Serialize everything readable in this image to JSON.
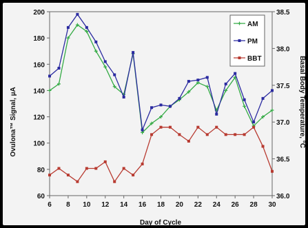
{
  "chart_data": {
    "type": "line",
    "xlabel": "Day of Cycle",
    "ylabel_left": "Ovulona™ Signal, µA",
    "ylabel_right": "Basal Body Temperature, °C",
    "xlim": [
      6,
      30
    ],
    "ylim_left": [
      60,
      200
    ],
    "ylim_right": [
      36.0,
      38.5
    ],
    "x_ticks": [
      "6",
      "8",
      "10",
      "12",
      "14",
      "16",
      "18",
      "20",
      "22",
      "24",
      "26",
      "28",
      "30"
    ],
    "y_left_ticks": [
      "60",
      "80",
      "100",
      "120",
      "140",
      "160",
      "180",
      "200"
    ],
    "y_right_ticks": [
      "36.0",
      "36.5",
      "37.0",
      "37.5",
      "38.0",
      "38.5"
    ],
    "legend_position": "top-right",
    "grid": false,
    "series": [
      {
        "name": "AM",
        "axis": "left",
        "color": "#33aa44",
        "marker": "plus",
        "x": [
          6,
          7,
          8,
          9,
          10,
          11,
          12,
          13,
          14,
          15,
          16,
          17,
          18,
          19,
          20,
          21,
          22,
          23,
          24,
          25,
          26,
          27,
          28,
          29,
          30
        ],
        "values": [
          140,
          145,
          180,
          190,
          185,
          170,
          158,
          143,
          137,
          168,
          108,
          115,
          120,
          128,
          133,
          139,
          146,
          143,
          125,
          140,
          150,
          128,
          113,
          120,
          125
        ]
      },
      {
        "name": "PM",
        "axis": "left",
        "color": "#2a2aa0",
        "marker": "square",
        "x": [
          6,
          7,
          8,
          9,
          10,
          11,
          12,
          13,
          14,
          15,
          16,
          17,
          18,
          19,
          20,
          21,
          22,
          23,
          24,
          25,
          26,
          27,
          28,
          29,
          30
        ],
        "values": [
          151,
          157,
          188,
          198,
          188,
          177,
          162,
          152,
          135,
          169,
          110,
          127,
          129,
          128,
          134,
          147,
          148,
          150,
          122,
          145,
          153,
          133,
          116,
          134,
          140
        ]
      },
      {
        "name": "BBT",
        "axis": "right",
        "color": "#b83a30",
        "marker": "square",
        "x": [
          6,
          7,
          8,
          9,
          10,
          11,
          12,
          13,
          14,
          15,
          16,
          17,
          18,
          19,
          20,
          21,
          22,
          23,
          24,
          25,
          26,
          27,
          28,
          29,
          30
        ],
        "values": [
          36.28,
          36.37,
          36.28,
          36.19,
          36.37,
          36.37,
          36.46,
          36.19,
          36.37,
          36.28,
          36.43,
          36.83,
          36.93,
          36.93,
          36.83,
          36.74,
          36.93,
          36.83,
          36.93,
          36.83,
          36.83,
          36.83,
          36.93,
          36.67,
          36.33
        ]
      }
    ]
  }
}
